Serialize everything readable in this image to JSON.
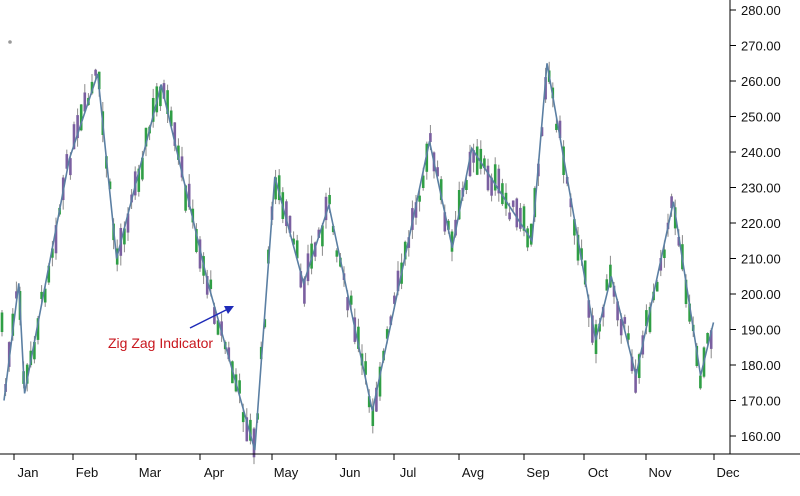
{
  "chart_data": {
    "type": "candlestick",
    "title": "",
    "xlabel": "",
    "ylabel": "",
    "ylim": [
      154,
      281
    ],
    "y_ticks": [
      "280.00",
      "270.00",
      "260.00",
      "250.00",
      "240.00",
      "230.00",
      "220.00",
      "210.00",
      "200.00",
      "190.00",
      "180.00",
      "170.00",
      "160.00"
    ],
    "x_ticks": [
      "Jan",
      "Feb",
      "Mar",
      "Apr",
      "May",
      "Jun",
      "Jul",
      "Avg",
      "Sep",
      "Oct",
      "Nov",
      "Dec"
    ],
    "grid": false,
    "series": [
      {
        "kind": "zigzag",
        "points": [
          [
            0.0,
            170
          ],
          [
            0.25,
            203
          ],
          [
            0.35,
            172
          ],
          [
            1.1,
            238
          ],
          [
            1.55,
            262
          ],
          [
            1.85,
            210
          ],
          [
            2.55,
            259
          ],
          [
            3.25,
            203
          ],
          [
            3.9,
            156
          ],
          [
            4.2,
            233
          ],
          [
            4.65,
            203
          ],
          [
            5.05,
            225
          ],
          [
            5.8,
            167
          ],
          [
            6.7,
            243
          ],
          [
            7.05,
            213
          ],
          [
            7.35,
            241
          ],
          [
            8.3,
            215
          ],
          [
            8.55,
            265
          ],
          [
            9.35,
            187
          ],
          [
            9.6,
            205
          ],
          [
            10.0,
            177
          ],
          [
            10.55,
            226
          ],
          [
            10.95,
            177
          ],
          [
            11.15,
            192
          ]
        ]
      },
      {
        "kind": "candles",
        "color_up": "#7a5fa0",
        "color_down": "#2f9e45"
      }
    ],
    "annotations": [
      {
        "text": "Zig Zag Indicator",
        "color": "#c8161d",
        "arrow_color": "#1f2bb8"
      }
    ],
    "colors": {
      "zigzag": "#5b7fa3",
      "wick": "#8a8a8a",
      "axis": "#000000"
    }
  }
}
